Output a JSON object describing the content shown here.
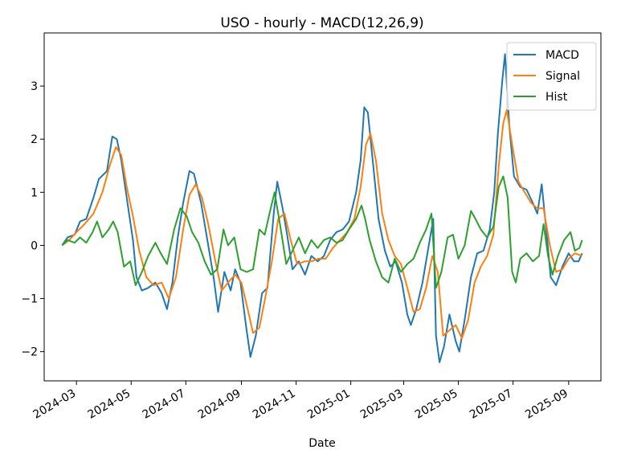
{
  "chart_data": {
    "type": "line",
    "title": "USO - hourly - MACD(12,26,9)",
    "xlabel": "Date",
    "ylabel": "",
    "xlim": [
      "2024-01-25",
      "2025-10-07"
    ],
    "ylim": [
      -2.55,
      4.0
    ],
    "x_ticks": [
      "2024-03",
      "2024-05",
      "2024-07",
      "2024-09",
      "2024-11",
      "2025-01",
      "2025-03",
      "2025-05",
      "2025-07",
      "2025-09"
    ],
    "y_ticks": [
      -2,
      -1,
      0,
      1,
      2,
      3
    ],
    "legend_position": "top-right",
    "grid": false,
    "series": [
      {
        "name": "MACD",
        "color": "#1f77b4",
        "points": [
          [
            "2024-02-14",
            0.0
          ],
          [
            "2024-02-20",
            0.15
          ],
          [
            "2024-02-28",
            0.2
          ],
          [
            "2024-03-05",
            0.45
          ],
          [
            "2024-03-12",
            0.5
          ],
          [
            "2024-03-20",
            0.9
          ],
          [
            "2024-03-26",
            1.25
          ],
          [
            "2024-04-04",
            1.4
          ],
          [
            "2024-04-10",
            2.05
          ],
          [
            "2024-04-15",
            2.0
          ],
          [
            "2024-04-20",
            1.6
          ],
          [
            "2024-04-26",
            0.9
          ],
          [
            "2024-05-03",
            0.1
          ],
          [
            "2024-05-07",
            -0.6
          ],
          [
            "2024-05-13",
            -0.85
          ],
          [
            "2024-05-20",
            -0.8
          ],
          [
            "2024-05-28",
            -0.7
          ],
          [
            "2024-06-04",
            -0.9
          ],
          [
            "2024-06-10",
            -1.2
          ],
          [
            "2024-06-16",
            -0.7
          ],
          [
            "2024-06-22",
            0.15
          ],
          [
            "2024-06-28",
            0.8
          ],
          [
            "2024-07-05",
            1.4
          ],
          [
            "2024-07-10",
            1.35
          ],
          [
            "2024-07-18",
            0.8
          ],
          [
            "2024-07-25",
            0.1
          ],
          [
            "2024-08-01",
            -0.6
          ],
          [
            "2024-08-06",
            -1.25
          ],
          [
            "2024-08-13",
            -0.5
          ],
          [
            "2024-08-20",
            -0.85
          ],
          [
            "2024-08-25",
            -0.45
          ],
          [
            "2024-08-31",
            -0.7
          ],
          [
            "2024-09-06",
            -1.5
          ],
          [
            "2024-09-11",
            -2.1
          ],
          [
            "2024-09-17",
            -1.7
          ],
          [
            "2024-09-24",
            -0.9
          ],
          [
            "2024-09-30",
            -0.8
          ],
          [
            "2024-10-07",
            0.6
          ],
          [
            "2024-10-11",
            1.2
          ],
          [
            "2024-10-17",
            0.7
          ],
          [
            "2024-10-22",
            0.2
          ],
          [
            "2024-10-28",
            -0.45
          ],
          [
            "2024-11-04",
            -0.3
          ],
          [
            "2024-11-11",
            -0.55
          ],
          [
            "2024-11-18",
            -0.2
          ],
          [
            "2024-11-25",
            -0.3
          ],
          [
            "2024-12-02",
            -0.2
          ],
          [
            "2024-12-09",
            0.1
          ],
          [
            "2024-12-16",
            0.25
          ],
          [
            "2024-12-23",
            0.3
          ],
          [
            "2024-12-30",
            0.45
          ],
          [
            "2025-01-07",
            1.0
          ],
          [
            "2025-01-12",
            1.6
          ],
          [
            "2025-01-16",
            2.6
          ],
          [
            "2025-01-20",
            2.5
          ],
          [
            "2025-01-26",
            1.5
          ],
          [
            "2025-02-01",
            0.5
          ],
          [
            "2025-02-08",
            -0.1
          ],
          [
            "2025-02-14",
            -0.4
          ],
          [
            "2025-02-20",
            -0.3
          ],
          [
            "2025-02-27",
            -0.7
          ],
          [
            "2025-03-05",
            -1.3
          ],
          [
            "2025-03-09",
            -1.5
          ],
          [
            "2025-03-15",
            -1.2
          ],
          [
            "2025-03-22",
            -0.7
          ],
          [
            "2025-03-29",
            0.0
          ],
          [
            "2025-04-03",
            0.5
          ],
          [
            "2025-04-06",
            -1.7
          ],
          [
            "2025-04-10",
            -2.2
          ],
          [
            "2025-04-15",
            -1.9
          ],
          [
            "2025-04-21",
            -1.3
          ],
          [
            "2025-04-28",
            -1.8
          ],
          [
            "2025-05-02",
            -2.0
          ],
          [
            "2025-05-08",
            -1.4
          ],
          [
            "2025-05-15",
            -0.6
          ],
          [
            "2025-05-22",
            -0.15
          ],
          [
            "2025-05-29",
            -0.1
          ],
          [
            "2025-06-05",
            0.3
          ],
          [
            "2025-06-10",
            1.0
          ],
          [
            "2025-06-14",
            2.1
          ],
          [
            "2025-06-19",
            3.1
          ],
          [
            "2025-06-22",
            3.6
          ],
          [
            "2025-06-27",
            2.2
          ],
          [
            "2025-07-02",
            1.3
          ],
          [
            "2025-07-09",
            1.1
          ],
          [
            "2025-07-16",
            1.05
          ],
          [
            "2025-07-23",
            0.8
          ],
          [
            "2025-07-28",
            0.6
          ],
          [
            "2025-08-02",
            1.15
          ],
          [
            "2025-08-07",
            0.3
          ],
          [
            "2025-08-12",
            -0.6
          ],
          [
            "2025-08-18",
            -0.75
          ],
          [
            "2025-08-25",
            -0.4
          ],
          [
            "2025-09-01",
            -0.15
          ],
          [
            "2025-09-07",
            -0.3
          ],
          [
            "2025-09-12",
            -0.3
          ],
          [
            "2025-09-16",
            -0.15
          ]
        ]
      },
      {
        "name": "Signal",
        "color": "#ff7f0e",
        "points": [
          [
            "2024-02-14",
            0.0
          ],
          [
            "2024-02-22",
            0.1
          ],
          [
            "2024-03-01",
            0.25
          ],
          [
            "2024-03-10",
            0.4
          ],
          [
            "2024-03-20",
            0.6
          ],
          [
            "2024-03-30",
            1.0
          ],
          [
            "2024-04-07",
            1.5
          ],
          [
            "2024-04-14",
            1.85
          ],
          [
            "2024-04-20",
            1.7
          ],
          [
            "2024-04-26",
            1.1
          ],
          [
            "2024-05-03",
            0.55
          ],
          [
            "2024-05-10",
            -0.1
          ],
          [
            "2024-05-18",
            -0.6
          ],
          [
            "2024-05-26",
            -0.75
          ],
          [
            "2024-06-04",
            -0.7
          ],
          [
            "2024-06-12",
            -1.0
          ],
          [
            "2024-06-20",
            -0.6
          ],
          [
            "2024-06-28",
            0.3
          ],
          [
            "2024-07-05",
            0.95
          ],
          [
            "2024-07-12",
            1.15
          ],
          [
            "2024-07-19",
            0.9
          ],
          [
            "2024-07-26",
            0.4
          ],
          [
            "2024-08-03",
            -0.3
          ],
          [
            "2024-08-10",
            -0.85
          ],
          [
            "2024-08-17",
            -0.7
          ],
          [
            "2024-08-25",
            -0.55
          ],
          [
            "2024-09-01",
            -0.7
          ],
          [
            "2024-09-08",
            -1.2
          ],
          [
            "2024-09-14",
            -1.65
          ],
          [
            "2024-09-21",
            -1.55
          ],
          [
            "2024-09-28",
            -0.95
          ],
          [
            "2024-10-05",
            -0.3
          ],
          [
            "2024-10-12",
            0.5
          ],
          [
            "2024-10-19",
            0.6
          ],
          [
            "2024-10-26",
            0.1
          ],
          [
            "2024-11-02",
            -0.35
          ],
          [
            "2024-11-11",
            -0.3
          ],
          [
            "2024-11-18",
            -0.3
          ],
          [
            "2024-11-26",
            -0.25
          ],
          [
            "2024-12-04",
            -0.25
          ],
          [
            "2024-12-12",
            -0.05
          ],
          [
            "2024-12-20",
            0.1
          ],
          [
            "2024-12-28",
            0.25
          ],
          [
            "2025-01-05",
            0.5
          ],
          [
            "2025-01-12",
            1.1
          ],
          [
            "2025-01-18",
            1.9
          ],
          [
            "2025-01-23",
            2.1
          ],
          [
            "2025-01-29",
            1.6
          ],
          [
            "2025-02-05",
            0.6
          ],
          [
            "2025-02-12",
            0.1
          ],
          [
            "2025-02-19",
            -0.2
          ],
          [
            "2025-02-26",
            -0.35
          ],
          [
            "2025-03-05",
            -0.8
          ],
          [
            "2025-03-12",
            -1.25
          ],
          [
            "2025-03-19",
            -1.2
          ],
          [
            "2025-03-26",
            -0.8
          ],
          [
            "2025-04-02",
            -0.2
          ],
          [
            "2025-04-08",
            -0.5
          ],
          [
            "2025-04-14",
            -1.7
          ],
          [
            "2025-04-21",
            -1.6
          ],
          [
            "2025-04-28",
            -1.5
          ],
          [
            "2025-05-05",
            -1.75
          ],
          [
            "2025-05-12",
            -1.4
          ],
          [
            "2025-05-19",
            -0.7
          ],
          [
            "2025-05-26",
            -0.4
          ],
          [
            "2025-06-02",
            -0.2
          ],
          [
            "2025-06-09",
            0.2
          ],
          [
            "2025-06-15",
            1.5
          ],
          [
            "2025-06-20",
            2.3
          ],
          [
            "2025-06-24",
            2.55
          ],
          [
            "2025-06-30",
            1.9
          ],
          [
            "2025-07-07",
            1.2
          ],
          [
            "2025-07-14",
            1.0
          ],
          [
            "2025-07-21",
            0.8
          ],
          [
            "2025-07-28",
            0.7
          ],
          [
            "2025-08-04",
            0.7
          ],
          [
            "2025-08-11",
            0.0
          ],
          [
            "2025-08-18",
            -0.5
          ],
          [
            "2025-08-25",
            -0.45
          ],
          [
            "2025-09-01",
            -0.25
          ],
          [
            "2025-09-08",
            -0.15
          ],
          [
            "2025-09-16",
            -0.2
          ]
        ]
      },
      {
        "name": "Hist",
        "color": "#2ca02c",
        "points": [
          [
            "2024-02-14",
            0.0
          ],
          [
            "2024-02-20",
            0.1
          ],
          [
            "2024-02-28",
            0.05
          ],
          [
            "2024-03-05",
            0.15
          ],
          [
            "2024-03-12",
            0.05
          ],
          [
            "2024-03-19",
            0.25
          ],
          [
            "2024-03-24",
            0.45
          ],
          [
            "2024-03-30",
            0.15
          ],
          [
            "2024-04-06",
            0.3
          ],
          [
            "2024-04-11",
            0.45
          ],
          [
            "2024-04-16",
            0.25
          ],
          [
            "2024-04-23",
            -0.4
          ],
          [
            "2024-04-30",
            -0.3
          ],
          [
            "2024-05-06",
            -0.75
          ],
          [
            "2024-05-13",
            -0.5
          ],
          [
            "2024-05-20",
            -0.2
          ],
          [
            "2024-05-28",
            0.05
          ],
          [
            "2024-06-03",
            -0.15
          ],
          [
            "2024-06-10",
            -0.35
          ],
          [
            "2024-06-18",
            0.3
          ],
          [
            "2024-06-25",
            0.7
          ],
          [
            "2024-07-02",
            0.55
          ],
          [
            "2024-07-08",
            0.25
          ],
          [
            "2024-07-15",
            0.05
          ],
          [
            "2024-07-22",
            -0.3
          ],
          [
            "2024-07-29",
            -0.55
          ],
          [
            "2024-08-05",
            -0.45
          ],
          [
            "2024-08-12",
            0.3
          ],
          [
            "2024-08-17",
            0.0
          ],
          [
            "2024-08-24",
            0.15
          ],
          [
            "2024-08-31",
            -0.45
          ],
          [
            "2024-09-07",
            -0.5
          ],
          [
            "2024-09-14",
            -0.45
          ],
          [
            "2024-09-21",
            0.3
          ],
          [
            "2024-09-27",
            0.2
          ],
          [
            "2024-10-03",
            0.65
          ],
          [
            "2024-10-08",
            1.0
          ],
          [
            "2024-10-14",
            0.4
          ],
          [
            "2024-10-21",
            -0.35
          ],
          [
            "2024-10-28",
            -0.1
          ],
          [
            "2024-11-04",
            0.15
          ],
          [
            "2024-11-11",
            -0.15
          ],
          [
            "2024-11-18",
            0.1
          ],
          [
            "2024-11-25",
            -0.05
          ],
          [
            "2024-12-02",
            0.1
          ],
          [
            "2024-12-09",
            0.15
          ],
          [
            "2024-12-16",
            0.05
          ],
          [
            "2024-12-23",
            0.1
          ],
          [
            "2024-12-30",
            0.3
          ],
          [
            "2025-01-07",
            0.5
          ],
          [
            "2025-01-13",
            0.75
          ],
          [
            "2025-01-17",
            0.5
          ],
          [
            "2025-01-22",
            0.1
          ],
          [
            "2025-01-29",
            -0.3
          ],
          [
            "2025-02-05",
            -0.6
          ],
          [
            "2025-02-12",
            -0.7
          ],
          [
            "2025-02-19",
            -0.25
          ],
          [
            "2025-02-26",
            -0.5
          ],
          [
            "2025-03-05",
            -0.35
          ],
          [
            "2025-03-12",
            -0.25
          ],
          [
            "2025-03-19",
            0.05
          ],
          [
            "2025-03-26",
            0.3
          ],
          [
            "2025-04-01",
            0.6
          ],
          [
            "2025-04-06",
            -0.8
          ],
          [
            "2025-04-12",
            -0.5
          ],
          [
            "2025-04-19",
            0.15
          ],
          [
            "2025-04-25",
            0.2
          ],
          [
            "2025-05-01",
            -0.25
          ],
          [
            "2025-05-08",
            0.0
          ],
          [
            "2025-05-15",
            0.65
          ],
          [
            "2025-05-20",
            0.5
          ],
          [
            "2025-05-26",
            0.3
          ],
          [
            "2025-06-02",
            0.15
          ],
          [
            "2025-06-09",
            0.35
          ],
          [
            "2025-06-15",
            1.1
          ],
          [
            "2025-06-20",
            1.3
          ],
          [
            "2025-06-25",
            0.9
          ],
          [
            "2025-06-30",
            -0.5
          ],
          [
            "2025-07-04",
            -0.7
          ],
          [
            "2025-07-09",
            -0.25
          ],
          [
            "2025-07-16",
            -0.15
          ],
          [
            "2025-07-23",
            -0.3
          ],
          [
            "2025-07-30",
            -0.2
          ],
          [
            "2025-08-04",
            0.4
          ],
          [
            "2025-08-09",
            -0.2
          ],
          [
            "2025-08-14",
            -0.55
          ],
          [
            "2025-08-20",
            -0.2
          ],
          [
            "2025-08-27",
            0.1
          ],
          [
            "2025-09-03",
            0.25
          ],
          [
            "2025-09-08",
            -0.1
          ],
          [
            "2025-09-13",
            -0.05
          ],
          [
            "2025-09-16",
            0.1
          ]
        ]
      }
    ]
  }
}
